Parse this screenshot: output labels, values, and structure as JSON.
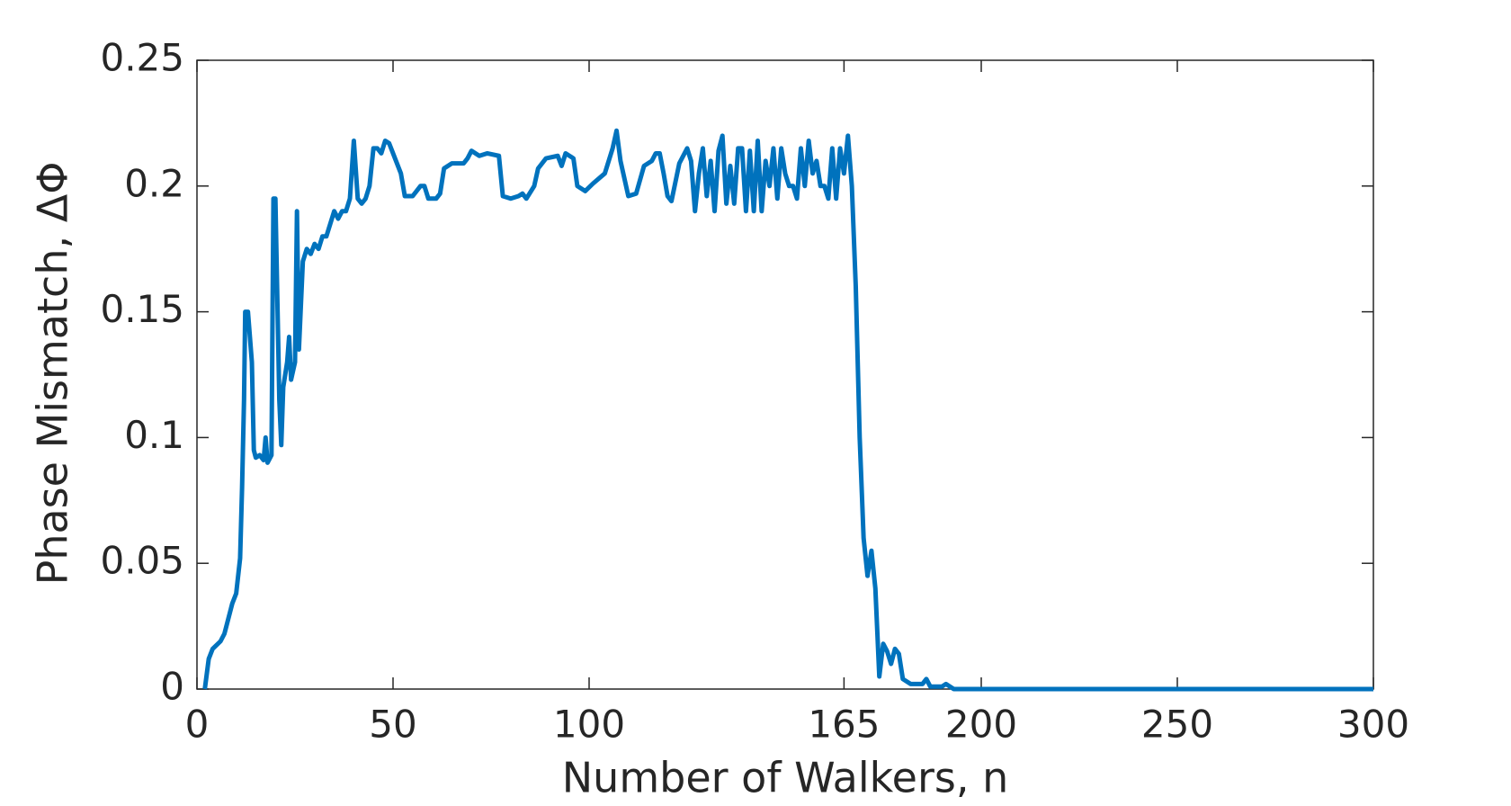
{
  "chart_data": {
    "type": "line",
    "xlabel": "Number of Walkers, n",
    "ylabel": "Phase Mismatch, ΔΦ",
    "x": [
      2,
      3,
      4,
      6,
      7,
      8,
      9,
      10,
      11,
      11.5,
      12,
      12.3,
      13,
      14,
      14.5,
      15,
      16,
      17,
      17.5,
      18,
      19,
      19.5,
      20,
      21,
      21.5,
      22,
      23,
      23.5,
      24,
      25,
      25.5,
      26,
      27,
      28,
      29,
      30,
      31,
      32,
      33,
      34,
      35,
      36,
      37,
      38,
      39,
      40,
      41,
      42,
      43,
      44,
      45,
      46,
      47,
      48,
      49,
      50,
      52,
      53,
      55,
      57,
      58,
      59,
      61,
      62,
      63,
      65,
      68,
      69,
      70,
      72,
      74,
      77,
      78,
      80,
      82,
      83,
      84,
      86,
      87,
      89,
      92,
      93,
      94,
      96,
      97,
      99,
      101,
      104,
      106,
      107,
      108,
      110,
      112,
      114,
      116,
      117,
      118,
      119,
      120,
      121,
      123,
      125,
      126,
      127,
      128,
      129,
      130,
      131,
      132,
      133,
      134,
      135,
      136,
      137,
      138,
      139,
      140,
      141,
      142,
      143,
      144,
      145,
      146,
      147,
      148,
      149,
      150,
      151,
      152,
      153,
      154,
      155,
      156,
      157,
      158,
      159,
      160,
      161,
      162,
      163,
      164,
      165,
      166,
      167,
      168,
      169,
      170,
      171,
      172,
      173,
      174,
      175,
      176,
      177,
      178,
      179,
      180,
      182,
      185,
      186,
      187,
      190,
      191,
      193,
      200,
      300
    ],
    "series": [
      {
        "name": "ΔΦ",
        "color": "#0072bd",
        "values": [
          0,
          0.012,
          0.016,
          0.019,
          0.022,
          0.028,
          0.034,
          0.038,
          0.052,
          0.08,
          0.115,
          0.15,
          0.15,
          0.13,
          0.095,
          0.092,
          0.093,
          0.091,
          0.1,
          0.09,
          0.093,
          0.195,
          0.195,
          0.115,
          0.097,
          0.12,
          0.13,
          0.14,
          0.123,
          0.13,
          0.19,
          0.135,
          0.17,
          0.175,
          0.173,
          0.177,
          0.175,
          0.18,
          0.18,
          0.185,
          0.19,
          0.187,
          0.19,
          0.19,
          0.195,
          0.218,
          0.195,
          0.193,
          0.195,
          0.2,
          0.215,
          0.215,
          0.213,
          0.218,
          0.217,
          0.213,
          0.205,
          0.196,
          0.196,
          0.2,
          0.2,
          0.195,
          0.195,
          0.197,
          0.207,
          0.209,
          0.209,
          0.211,
          0.214,
          0.212,
          0.213,
          0.212,
          0.196,
          0.195,
          0.196,
          0.197,
          0.195,
          0.2,
          0.207,
          0.211,
          0.212,
          0.208,
          0.213,
          0.211,
          0.2,
          0.198,
          0.201,
          0.205,
          0.215,
          0.222,
          0.21,
          0.196,
          0.197,
          0.208,
          0.21,
          0.213,
          0.213,
          0.205,
          0.196,
          0.194,
          0.209,
          0.215,
          0.21,
          0.19,
          0.205,
          0.215,
          0.196,
          0.21,
          0.19,
          0.214,
          0.22,
          0.193,
          0.208,
          0.193,
          0.215,
          0.215,
          0.19,
          0.214,
          0.19,
          0.218,
          0.19,
          0.21,
          0.2,
          0.215,
          0.195,
          0.215,
          0.205,
          0.2,
          0.2,
          0.195,
          0.215,
          0.2,
          0.218,
          0.205,
          0.21,
          0.2,
          0.2,
          0.195,
          0.215,
          0.195,
          0.215,
          0.205,
          0.22,
          0.2,
          0.16,
          0.1,
          0.06,
          0.045,
          0.055,
          0.04,
          0.005,
          0.018,
          0.015,
          0.01,
          0.016,
          0.014,
          0.004,
          0.002,
          0.002,
          0.004,
          0.001,
          0.001,
          0.002,
          0,
          0,
          0
        ]
      }
    ],
    "xlim": [
      0,
      300
    ],
    "xticks": [
      0,
      50,
      100,
      165,
      200,
      250,
      300
    ],
    "ylim": [
      0,
      0.25
    ],
    "yticks": [
      0,
      0.05,
      0.1,
      0.15,
      0.2,
      0.25
    ]
  }
}
